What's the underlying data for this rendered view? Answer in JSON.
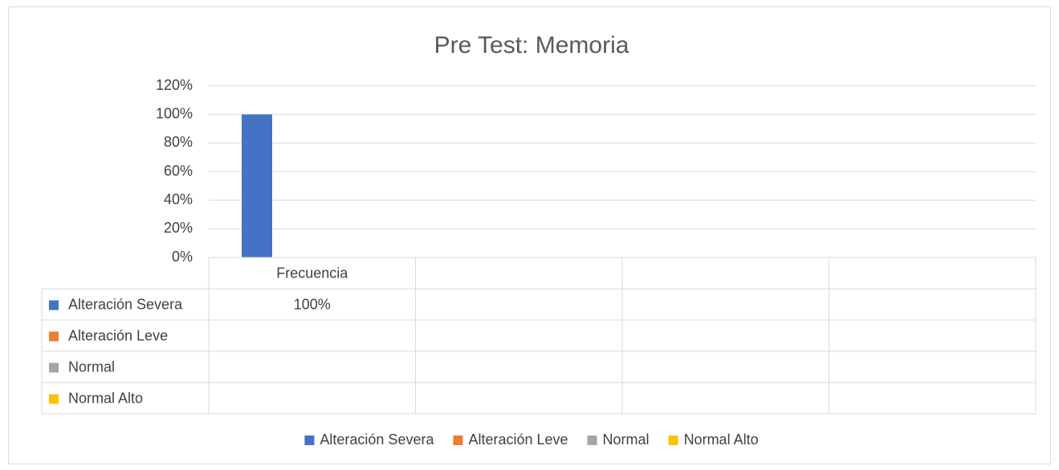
{
  "chart_data": {
    "type": "bar",
    "title": "Pre Test: Memoria",
    "categories": [
      "Frecuencia",
      null,
      null,
      null
    ],
    "series": [
      {
        "name": "Alteración Severa",
        "color": "#4472c4",
        "values": [
          100,
          null,
          null,
          null
        ],
        "value_labels": [
          "100%",
          null,
          null,
          null
        ]
      },
      {
        "name": "Alteración Leve",
        "color": "#ed7d31",
        "values": [
          null,
          null,
          null,
          null
        ]
      },
      {
        "name": "Normal",
        "color": "#a5a5a5",
        "values": [
          null,
          null,
          null,
          null
        ]
      },
      {
        "name": "Normal Alto",
        "color": "#ffc000",
        "values": [
          null,
          null,
          null,
          null
        ]
      }
    ],
    "ylim": [
      0,
      120
    ],
    "yticks": [
      {
        "value": 0,
        "label": "0%"
      },
      {
        "value": 20,
        "label": "20%"
      },
      {
        "value": 40,
        "label": "40%"
      },
      {
        "value": 60,
        "label": "60%"
      },
      {
        "value": 80,
        "label": "80%"
      },
      {
        "value": 100,
        "label": "100%"
      },
      {
        "value": 120,
        "label": "120%"
      }
    ],
    "grid": true,
    "legend": "bottom",
    "data_table": true
  }
}
